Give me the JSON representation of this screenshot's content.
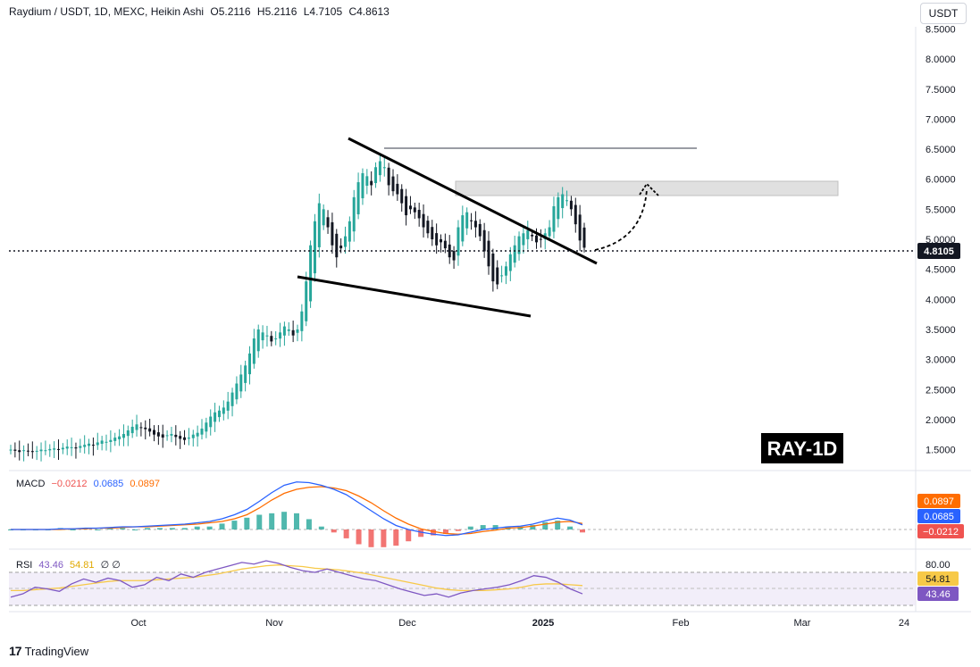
{
  "header": {
    "symbol": "Raydium / USDT, 1D, MEXC, Heikin Ashi",
    "open": "O5.2116",
    "high": "H5.2116",
    "low": "L4.7105",
    "close": "C4.8613"
  },
  "currency_button": "USDT",
  "watermark": "RAY-1D",
  "footer_brand": "TradingView",
  "colors": {
    "up": "#26a69a",
    "down": "#131722",
    "macd": "#2962ff",
    "signal": "#ff6d00",
    "hist_up": "#26a69a",
    "hist_down": "#ef5350",
    "rsi": "#7e57c2",
    "rsi_ma": "#f7c948",
    "trendline": "#000000",
    "resistance": "#787b86",
    "zone": "#d9d9d9"
  },
  "macd": {
    "title": "MACD",
    "hist": "−0.0212",
    "macd": "0.0685",
    "signal": "0.0897"
  },
  "rsi": {
    "title": "RSI",
    "rsi": "43.46",
    "ma": "54.81",
    "extra": "∅ ∅"
  },
  "chart_data": {
    "type": "candlestick",
    "title": "Raydium / USDT, 1D, MEXC, Heikin Ashi",
    "price_ticks": [
      "8.5000",
      "8.0000",
      "7.5000",
      "7.0000",
      "6.5000",
      "6.0000",
      "5.5000",
      "5.0000",
      "4.5000",
      "4.0000",
      "3.5000",
      "3.0000",
      "2.5000",
      "2.0000",
      "1.5000"
    ],
    "x_ticks": [
      "Oct",
      "Nov",
      "Dec",
      "2025",
      "Feb",
      "Mar",
      "24"
    ],
    "ylim": [
      1.3,
      8.5
    ],
    "current_price": "4.8105",
    "macd_axis": [
      "0.0897",
      "0.0685",
      "−0.0212"
    ],
    "rsi_axis": [
      "80.00",
      "54.81",
      "43.46"
    ],
    "closes": [
      1.5,
      1.48,
      1.46,
      1.49,
      1.47,
      1.46,
      1.48,
      1.5,
      1.49,
      1.51,
      1.52,
      1.5,
      1.53,
      1.55,
      1.54,
      1.52,
      1.56,
      1.58,
      1.6,
      1.57,
      1.62,
      1.65,
      1.63,
      1.66,
      1.7,
      1.72,
      1.76,
      1.82,
      1.88,
      1.92,
      1.86,
      1.84,
      1.8,
      1.75,
      1.72,
      1.7,
      1.74,
      1.76,
      1.71,
      1.68,
      1.66,
      1.7,
      1.75,
      1.78,
      1.85,
      1.95,
      2.05,
      2.12,
      2.15,
      2.2,
      2.3,
      2.45,
      2.6,
      2.75,
      2.9,
      3.1,
      3.35,
      3.5,
      3.45,
      3.4,
      3.3,
      3.35,
      3.45,
      3.55,
      3.5,
      3.4,
      3.5,
      3.8,
      4.3,
      4.9,
      5.3,
      5.6,
      5.5,
      5.2,
      4.9,
      4.7,
      4.85,
      5.05,
      5.3,
      5.7,
      5.95,
      6.1,
      6.05,
      5.9,
      6.2,
      6.3,
      6.2,
      5.9,
      5.8,
      5.75,
      5.6,
      5.4,
      5.5,
      5.45,
      5.35,
      5.2,
      5.1,
      5.0,
      4.9,
      4.95,
      4.85,
      4.7,
      4.65,
      5.2,
      5.4,
      5.45,
      5.3,
      5.2,
      5.05,
      4.8,
      4.55,
      4.3,
      4.25,
      4.4,
      4.55,
      4.75,
      4.9,
      5.05,
      5.1,
      5.15,
      5.05,
      4.95,
      5.0,
      5.1,
      5.2,
      5.55,
      5.7,
      5.75,
      5.65,
      5.5,
      5.25,
      4.98,
      4.86
    ],
    "macd_line": [
      0,
      0,
      0,
      0,
      0.01,
      0.01,
      0.02,
      0.02,
      0.03,
      0.04,
      0.04,
      0.05,
      0.06,
      0.07,
      0.08,
      0.1,
      0.12,
      0.16,
      0.22,
      0.3,
      0.42,
      0.55,
      0.66,
      0.71,
      0.7,
      0.66,
      0.6,
      0.52,
      0.4,
      0.28,
      0.16,
      0.06,
      0.0,
      -0.04,
      -0.07,
      -0.09,
      -0.08,
      -0.04,
      0.0,
      0.02,
      0.04,
      0.05,
      0.08,
      0.13,
      0.17,
      0.14,
      0.07
    ],
    "signal_line": [
      0,
      0,
      0,
      0,
      0,
      0.01,
      0.01,
      0.02,
      0.02,
      0.03,
      0.04,
      0.04,
      0.05,
      0.06,
      0.07,
      0.08,
      0.1,
      0.12,
      0.16,
      0.22,
      0.32,
      0.44,
      0.54,
      0.6,
      0.63,
      0.64,
      0.62,
      0.58,
      0.5,
      0.4,
      0.28,
      0.17,
      0.08,
      0.01,
      -0.03,
      -0.06,
      -0.07,
      -0.06,
      -0.03,
      -0.01,
      0.02,
      0.03,
      0.05,
      0.08,
      0.11,
      0.12,
      0.09
    ],
    "rsi_line": [
      40,
      44,
      52,
      50,
      47,
      56,
      62,
      58,
      63,
      60,
      52,
      55,
      64,
      60,
      68,
      64,
      70,
      74,
      78,
      82,
      80,
      84,
      81,
      76,
      72,
      70,
      74,
      70,
      66,
      62,
      60,
      55,
      50,
      46,
      42,
      44,
      40,
      45,
      48,
      50,
      52,
      55,
      60,
      66,
      64,
      58,
      50,
      44
    ],
    "rsi_ma": [
      48,
      48,
      49,
      50,
      51,
      53,
      55,
      57,
      59,
      60,
      60,
      60,
      61,
      62,
      63,
      64,
      66,
      68,
      71,
      74,
      76,
      78,
      79,
      78,
      77,
      75,
      74,
      73,
      71,
      69,
      66,
      63,
      60,
      57,
      54,
      51,
      49,
      48,
      48,
      48,
      49,
      50,
      52,
      55,
      56,
      56,
      55,
      54
    ]
  }
}
